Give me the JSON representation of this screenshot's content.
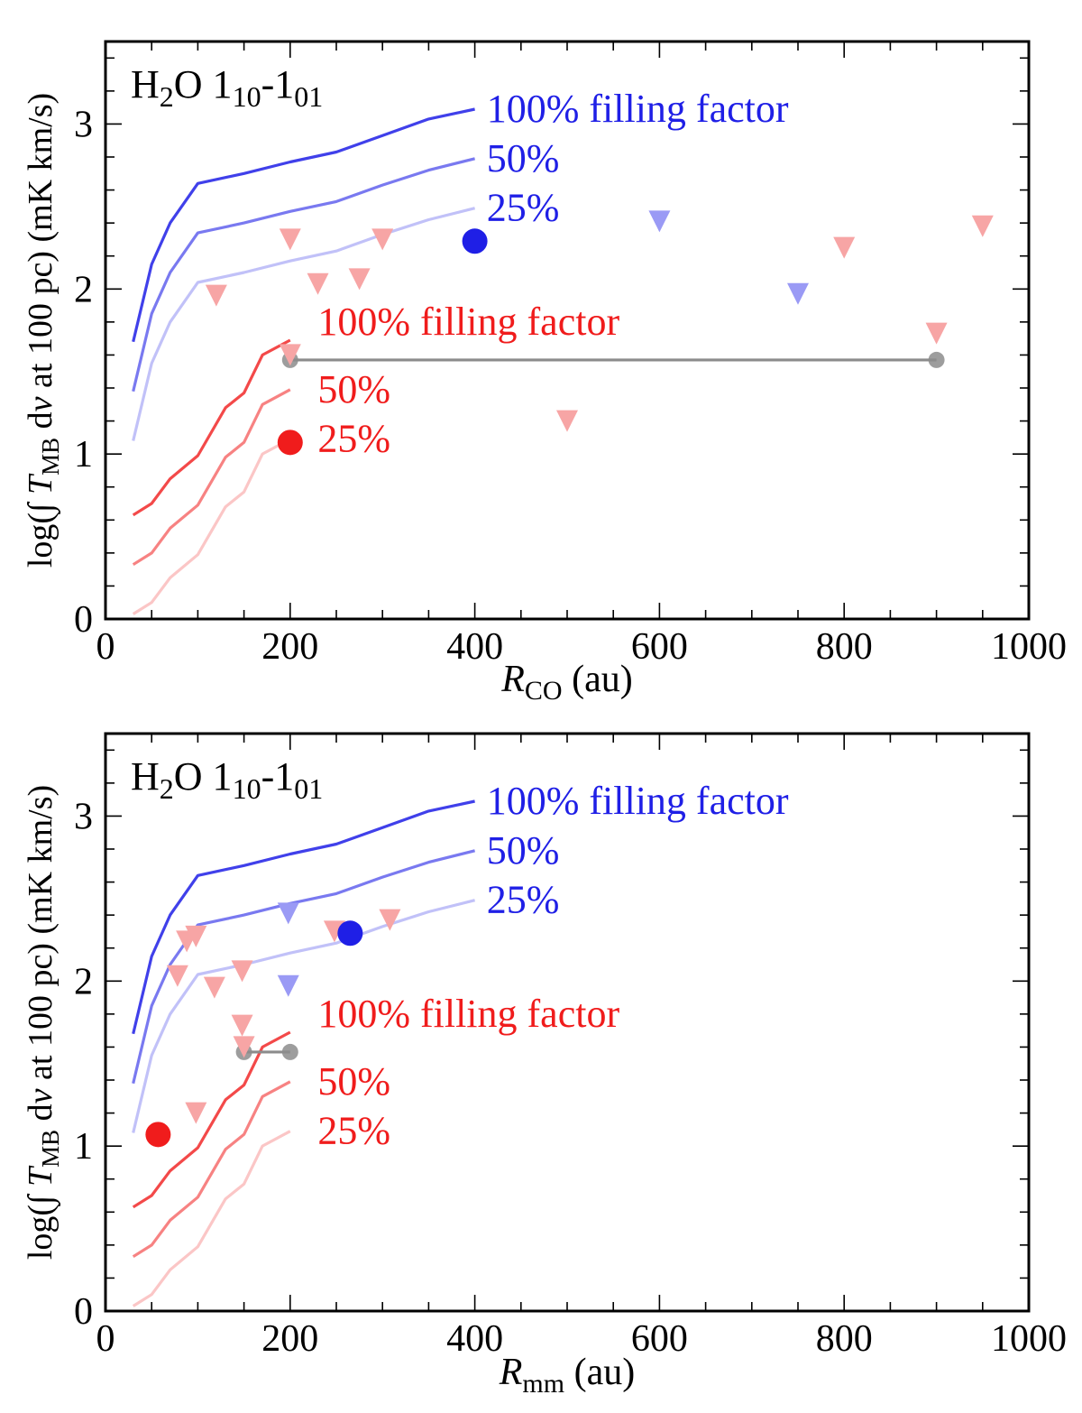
{
  "colors": {
    "blue": "#1f1fe6",
    "red": "#f01c1c",
    "grey": "#8c8c8c",
    "blue_tri": "#9a9af5",
    "red_tri": "#f7a5a5"
  },
  "chart_data": [
    {
      "type": "line",
      "title": "",
      "line_label": "H₂O 1₁₀-1₀₁",
      "xlabel": "R_CO (au)",
      "xlabel_main": "R",
      "xlabel_sub": "CO",
      "xlabel_unit": " (au)",
      "ylabel": "log(∫ T_MB dv at 100 pc) (mK km/s)",
      "xlim": [
        0,
        1000
      ],
      "ylim": [
        0,
        3.5
      ],
      "xticks": [
        0,
        200,
        400,
        600,
        800,
        1000
      ],
      "yticks": [
        0,
        1,
        2,
        3
      ],
      "grid": false,
      "series": [
        {
          "name": "blue 100%",
          "color": "blue",
          "opacity": 0.85,
          "x": [
            30,
            50,
            70,
            100,
            150,
            200,
            250,
            300,
            350,
            400
          ],
          "y": [
            1.68,
            2.15,
            2.4,
            2.64,
            2.7,
            2.77,
            2.83,
            2.93,
            3.03,
            3.09
          ]
        },
        {
          "name": "blue 50%",
          "color": "blue",
          "opacity": 0.6,
          "x": [
            30,
            50,
            70,
            100,
            150,
            200,
            250,
            300,
            350,
            400
          ],
          "y": [
            1.38,
            1.85,
            2.1,
            2.34,
            2.4,
            2.47,
            2.53,
            2.63,
            2.72,
            2.79
          ]
        },
        {
          "name": "blue 25%",
          "color": "blue",
          "opacity": 0.28,
          "x": [
            30,
            50,
            70,
            100,
            150,
            200,
            250,
            300,
            350,
            400
          ],
          "y": [
            1.08,
            1.55,
            1.8,
            2.04,
            2.1,
            2.17,
            2.23,
            2.33,
            2.42,
            2.49
          ]
        },
        {
          "name": "red 100%",
          "color": "red",
          "opacity": 0.8,
          "x": [
            30,
            50,
            70,
            100,
            130,
            150,
            170,
            200
          ],
          "y": [
            0.63,
            0.7,
            0.85,
            0.99,
            1.28,
            1.37,
            1.6,
            1.69
          ]
        },
        {
          "name": "red 50%",
          "color": "red",
          "opacity": 0.55,
          "x": [
            30,
            50,
            70,
            100,
            130,
            150,
            170,
            200
          ],
          "y": [
            0.33,
            0.4,
            0.55,
            0.69,
            0.98,
            1.07,
            1.3,
            1.39
          ]
        },
        {
          "name": "red 25%",
          "color": "red",
          "opacity": 0.25,
          "x": [
            30,
            50,
            70,
            100,
            130,
            150,
            170,
            200
          ],
          "y": [
            0.03,
            0.1,
            0.25,
            0.39,
            0.68,
            0.77,
            1.0,
            1.09
          ]
        }
      ],
      "line_labels": [
        {
          "text": "100% filling factor",
          "color": "blue",
          "x": 405,
          "y": 3.09
        },
        {
          "text": "50%",
          "color": "blue",
          "x": 405,
          "y": 2.79
        },
        {
          "text": "25%",
          "color": "blue",
          "x": 405,
          "y": 2.49
        },
        {
          "text": "100% filling factor",
          "color": "red",
          "x": 222,
          "y": 1.8
        },
        {
          "text": "50%",
          "color": "red",
          "x": 222,
          "y": 1.39
        },
        {
          "text": "25%",
          "color": "red",
          "x": 222,
          "y": 1.09
        }
      ],
      "detections": [
        {
          "color": "blue",
          "x": 400,
          "y": 2.29
        },
        {
          "color": "red",
          "x": 200,
          "y": 1.07
        }
      ],
      "upper_limits_blue": [
        {
          "x": 600,
          "y": 2.41
        },
        {
          "x": 750,
          "y": 1.97
        }
      ],
      "upper_limits_red": [
        {
          "x": 200,
          "y": 2.3
        },
        {
          "x": 120,
          "y": 1.96
        },
        {
          "x": 230,
          "y": 2.03
        },
        {
          "x": 275,
          "y": 2.06
        },
        {
          "x": 300,
          "y": 2.3
        },
        {
          "x": 200,
          "y": 1.6
        },
        {
          "x": 500,
          "y": 1.2
        },
        {
          "x": 800,
          "y": 2.25
        },
        {
          "x": 900,
          "y": 1.73
        },
        {
          "x": 950,
          "y": 2.38
        }
      ],
      "range_bar": {
        "x1": 200,
        "x2": 900,
        "y": 1.57
      }
    },
    {
      "type": "line",
      "title": "",
      "line_label": "H₂O 1₁₀-1₀₁",
      "xlabel": "R_mm (au)",
      "xlabel_main": "R",
      "xlabel_sub": "mm",
      "xlabel_unit": " (au)",
      "ylabel": "log(∫ T_MB dv at 100 pc) (mK km/s)",
      "xlim": [
        0,
        1000
      ],
      "ylim": [
        0,
        3.5
      ],
      "xticks": [
        0,
        200,
        400,
        600,
        800,
        1000
      ],
      "yticks": [
        0,
        1,
        2,
        3
      ],
      "grid": false,
      "series": [
        {
          "name": "blue 100%",
          "color": "blue",
          "opacity": 0.85,
          "x": [
            30,
            50,
            70,
            100,
            150,
            200,
            250,
            300,
            350,
            400
          ],
          "y": [
            1.68,
            2.15,
            2.4,
            2.64,
            2.7,
            2.77,
            2.83,
            2.93,
            3.03,
            3.09
          ]
        },
        {
          "name": "blue 50%",
          "color": "blue",
          "opacity": 0.6,
          "x": [
            30,
            50,
            70,
            100,
            150,
            200,
            250,
            300,
            350,
            400
          ],
          "y": [
            1.38,
            1.85,
            2.1,
            2.34,
            2.4,
            2.47,
            2.53,
            2.63,
            2.72,
            2.79
          ]
        },
        {
          "name": "blue 25%",
          "color": "blue",
          "opacity": 0.28,
          "x": [
            30,
            50,
            70,
            100,
            150,
            200,
            250,
            300,
            350,
            400
          ],
          "y": [
            1.08,
            1.55,
            1.8,
            2.04,
            2.1,
            2.17,
            2.23,
            2.33,
            2.42,
            2.49
          ]
        },
        {
          "name": "red 100%",
          "color": "red",
          "opacity": 0.8,
          "x": [
            30,
            50,
            70,
            100,
            130,
            150,
            170,
            200
          ],
          "y": [
            0.63,
            0.7,
            0.85,
            0.99,
            1.28,
            1.37,
            1.6,
            1.69
          ]
        },
        {
          "name": "red 50%",
          "color": "red",
          "opacity": 0.55,
          "x": [
            30,
            50,
            70,
            100,
            130,
            150,
            170,
            200
          ],
          "y": [
            0.33,
            0.4,
            0.55,
            0.69,
            0.98,
            1.07,
            1.3,
            1.39
          ]
        },
        {
          "name": "red 25%",
          "color": "red",
          "opacity": 0.25,
          "x": [
            30,
            50,
            70,
            100,
            130,
            150,
            170,
            200
          ],
          "y": [
            0.03,
            0.1,
            0.25,
            0.39,
            0.68,
            0.77,
            1.0,
            1.09
          ]
        }
      ],
      "line_labels": [
        {
          "text": "100% filling factor",
          "color": "blue",
          "x": 405,
          "y": 3.09
        },
        {
          "text": "50%",
          "color": "blue",
          "x": 405,
          "y": 2.79
        },
        {
          "text": "25%",
          "color": "blue",
          "x": 405,
          "y": 2.49
        },
        {
          "text": "100% filling factor",
          "color": "red",
          "x": 222,
          "y": 1.8
        },
        {
          "text": "50%",
          "color": "red",
          "x": 222,
          "y": 1.39
        },
        {
          "text": "25%",
          "color": "red",
          "x": 222,
          "y": 1.09
        }
      ],
      "detections": [
        {
          "color": "blue",
          "x": 265,
          "y": 2.29
        },
        {
          "color": "red",
          "x": 57,
          "y": 1.07
        }
      ],
      "upper_limits_blue": [
        {
          "x": 198,
          "y": 2.41
        },
        {
          "x": 198,
          "y": 1.97
        }
      ],
      "upper_limits_red": [
        {
          "x": 88,
          "y": 2.24
        },
        {
          "x": 98,
          "y": 2.27
        },
        {
          "x": 78,
          "y": 2.03
        },
        {
          "x": 118,
          "y": 1.96
        },
        {
          "x": 148,
          "y": 2.06
        },
        {
          "x": 148,
          "y": 1.73
        },
        {
          "x": 98,
          "y": 1.2
        },
        {
          "x": 248,
          "y": 2.3
        },
        {
          "x": 308,
          "y": 2.37
        },
        {
          "x": 150,
          "y": 1.6
        }
      ],
      "range_bar": {
        "x1": 150,
        "x2": 200,
        "y": 1.57
      }
    }
  ]
}
